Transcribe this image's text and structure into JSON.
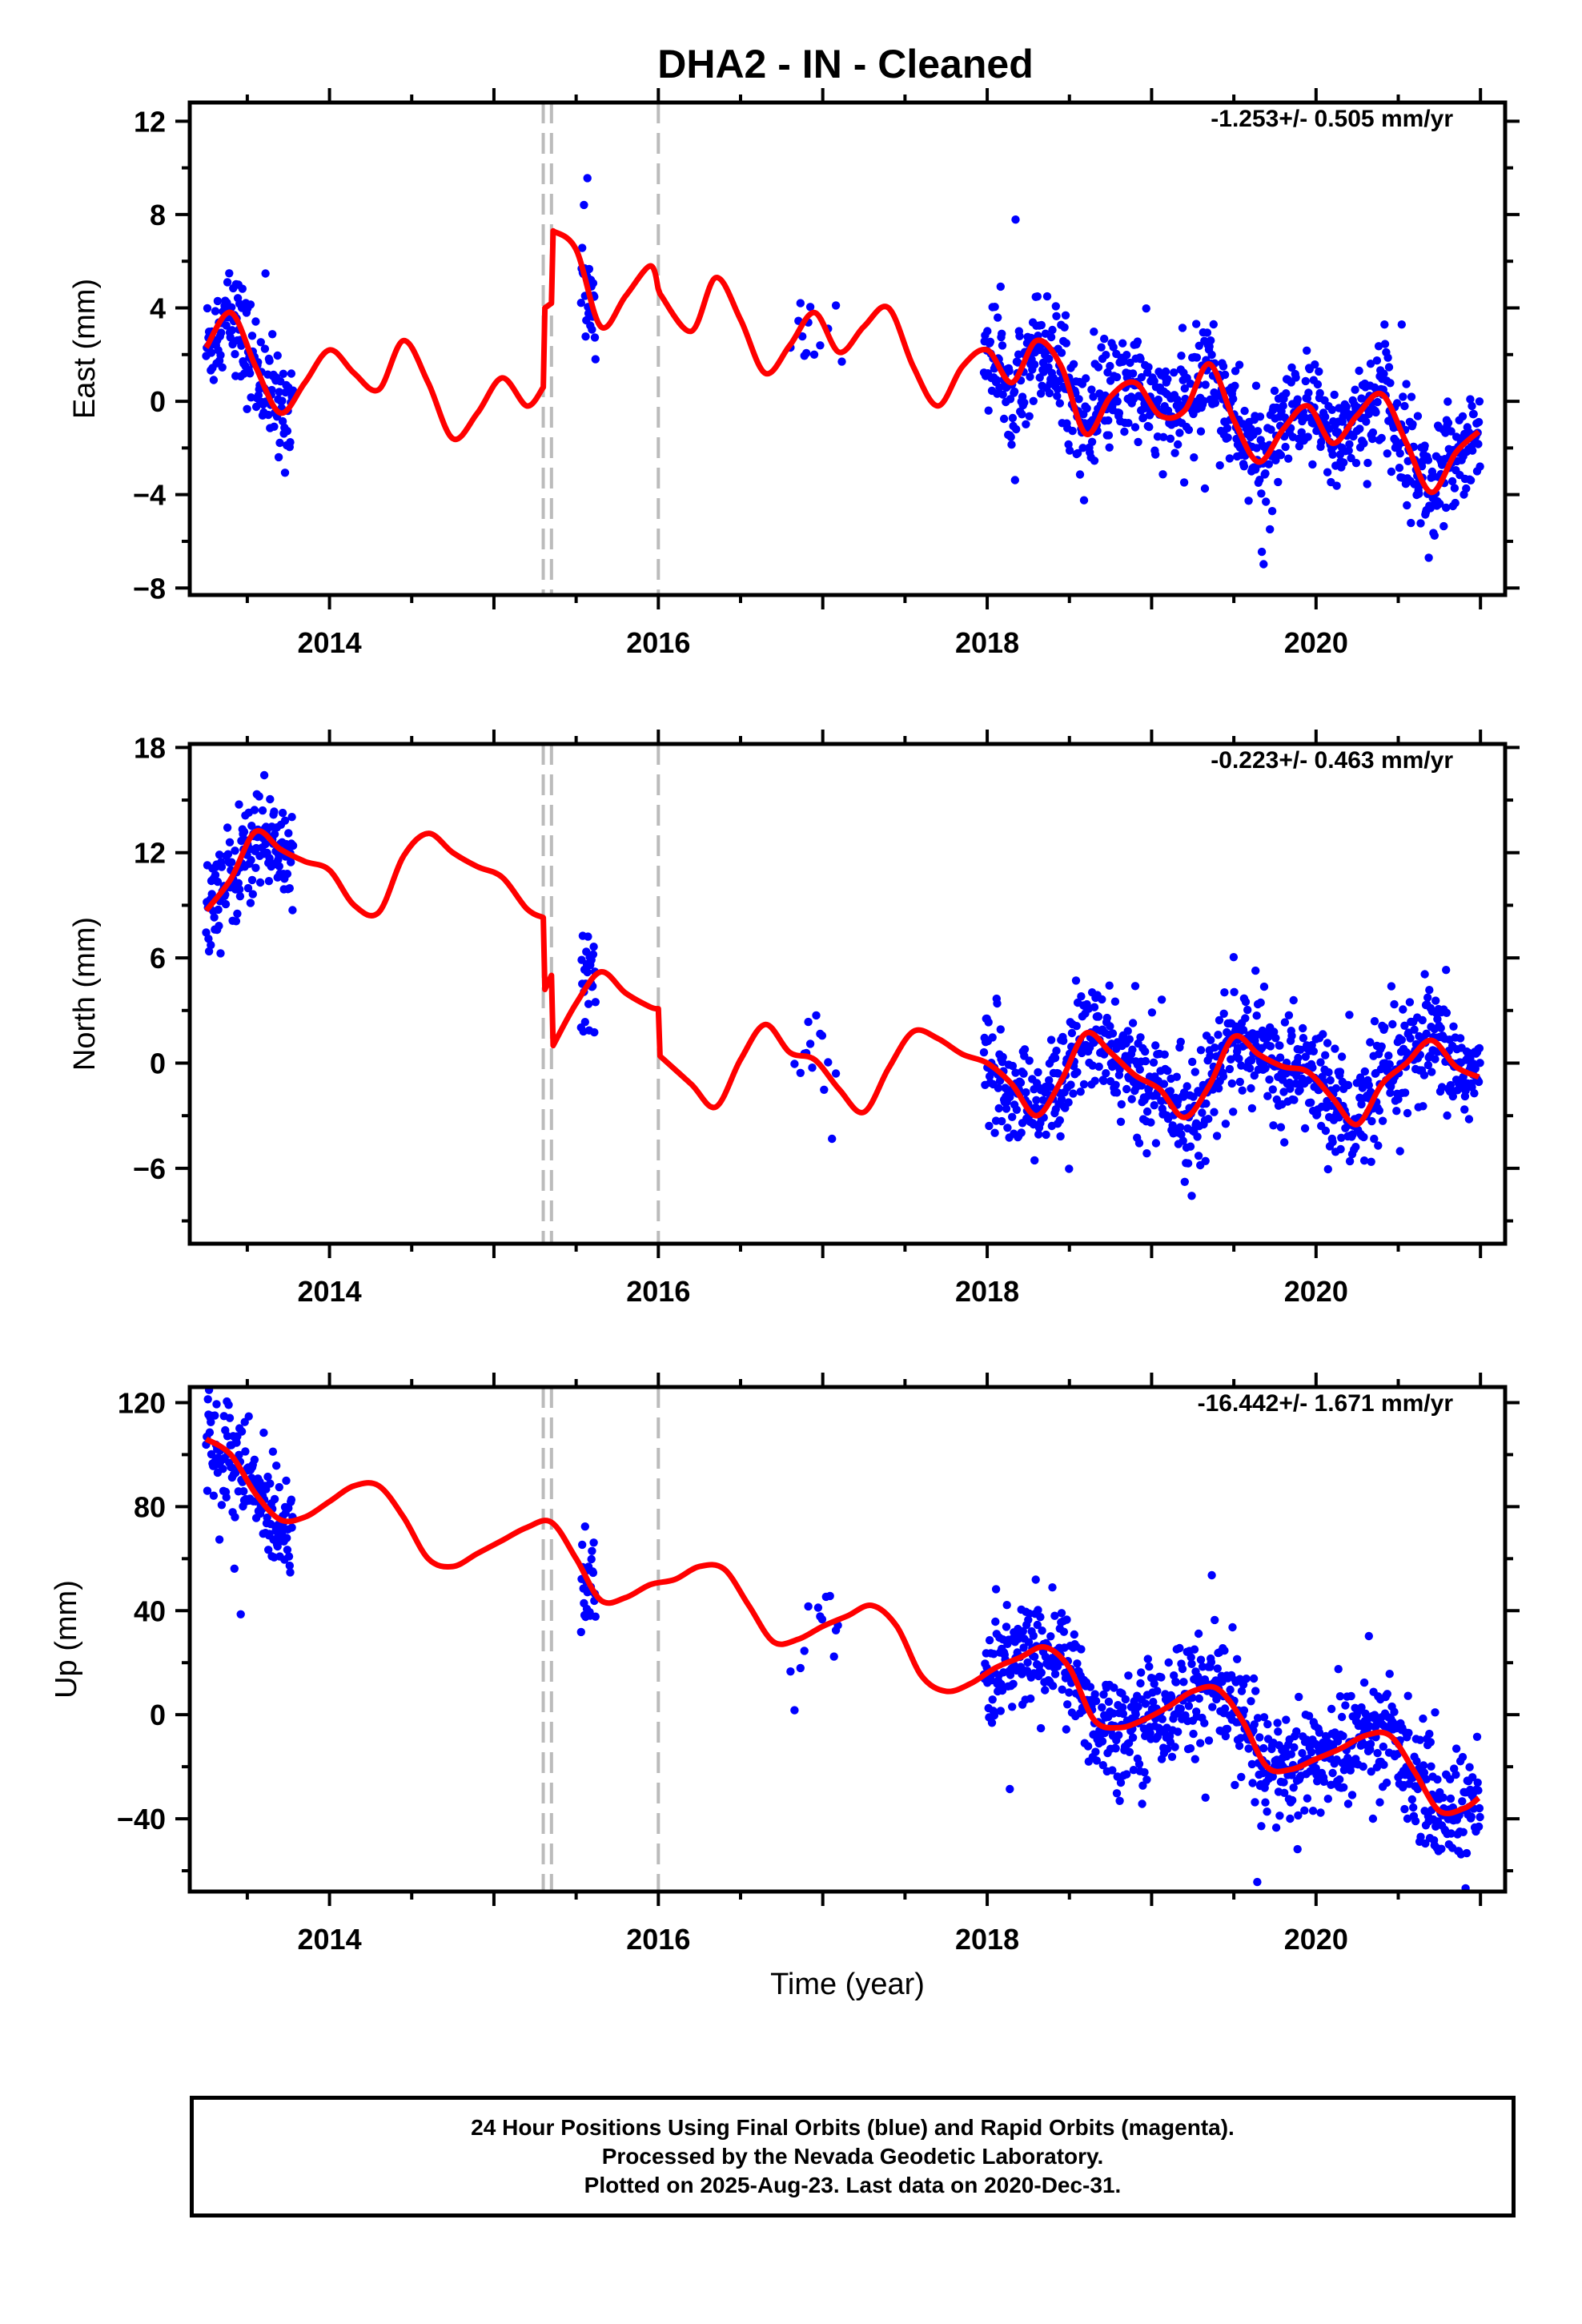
{
  "title": "DHA2  - IN - Cleaned",
  "footer": {
    "lines": [
      "24 Hour Positions Using Final Orbits (blue) and Rapid Orbits (magenta).",
      "Processed by the Nevada Geodetic Laboratory.",
      "Plotted on 2025-Aug-23. Last data on 2020-Dec-31."
    ]
  },
  "colors": {
    "points": "#0000ff",
    "model": "#ff0000",
    "steps": "#bbbbbb"
  },
  "chart_data": [
    {
      "type": "scatter",
      "ylabel": "East (mm)",
      "rate_text": "-1.253+/- 0.505 mm/yr",
      "xlim": [
        2013.15,
        2021.15
      ],
      "ylim": [
        -8.3,
        12.8
      ],
      "xticks": [
        2014,
        2016,
        2018,
        2020
      ],
      "yticks": [
        12,
        8,
        4,
        0,
        -4,
        -8
      ],
      "step_lines": [
        2015.3,
        2015.35,
        2016.0
      ],
      "model": {
        "x": [
          2013.25,
          2013.4,
          2013.55,
          2013.7,
          2013.85,
          2014.0,
          2014.15,
          2014.3,
          2014.45,
          2014.6,
          2014.75,
          2014.9,
          2015.05,
          2015.2,
          2015.3,
          2015.31,
          2015.35,
          2015.36,
          2015.5,
          2015.65,
          2015.8,
          2015.95,
          2016.0,
          2016.01,
          2016.2,
          2016.35,
          2016.5,
          2016.65,
          2016.8,
          2016.95,
          2017.1,
          2017.25,
          2017.4,
          2017.55,
          2017.7,
          2017.85,
          2018.0,
          2018.15,
          2018.3,
          2018.45,
          2018.6,
          2018.75,
          2018.9,
          2019.05,
          2019.2,
          2019.35,
          2019.5,
          2019.65,
          2019.8,
          2019.95,
          2020.1,
          2020.25,
          2020.4,
          2020.55,
          2020.7,
          2020.85,
          2020.99
        ],
        "y": [
          2.3,
          3.8,
          1.5,
          -0.5,
          0.8,
          2.2,
          1.2,
          0.5,
          2.6,
          0.8,
          -1.6,
          -0.5,
          1.0,
          -0.2,
          0.6,
          4.0,
          4.2,
          7.3,
          6.5,
          3.2,
          4.5,
          5.8,
          4.8,
          4.6,
          3.0,
          5.3,
          3.5,
          1.2,
          2.4,
          3.8,
          2.1,
          3.2,
          4.0,
          1.5,
          -0.2,
          1.5,
          2.2,
          0.8,
          2.6,
          1.5,
          -1.4,
          0.2,
          0.8,
          -0.6,
          -0.4,
          1.6,
          -0.8,
          -2.6,
          -1.2,
          -0.2,
          -1.8,
          -0.6,
          0.3,
          -1.8,
          -3.9,
          -2.2,
          -1.3
        ]
      }
    },
    {
      "type": "scatter",
      "ylabel": "North (mm)",
      "rate_text": "-0.223+/- 0.463 mm/yr",
      "xlim": [
        2013.15,
        2021.15
      ],
      "ylim": [
        -10.3,
        18.2
      ],
      "xticks": [
        2014,
        2016,
        2018,
        2020
      ],
      "yticks": [
        18,
        12,
        6,
        0,
        -6
      ],
      "step_lines": [
        2015.3,
        2015.35,
        2016.0
      ],
      "model": {
        "x": [
          2013.25,
          2013.4,
          2013.55,
          2013.7,
          2013.85,
          2014.0,
          2014.15,
          2014.3,
          2014.45,
          2014.6,
          2014.75,
          2014.9,
          2015.05,
          2015.2,
          2015.3,
          2015.31,
          2015.35,
          2015.36,
          2015.5,
          2015.65,
          2015.8,
          2015.95,
          2016.0,
          2016.01,
          2016.2,
          2016.35,
          2016.5,
          2016.65,
          2016.8,
          2016.95,
          2017.1,
          2017.25,
          2017.4,
          2017.55,
          2017.7,
          2017.85,
          2018.0,
          2018.15,
          2018.3,
          2018.45,
          2018.6,
          2018.75,
          2018.9,
          2019.05,
          2019.2,
          2019.35,
          2019.5,
          2019.65,
          2019.8,
          2019.95,
          2020.1,
          2020.25,
          2020.4,
          2020.55,
          2020.7,
          2020.85,
          2020.99
        ],
        "y": [
          8.7,
          10.5,
          13.2,
          12.2,
          11.5,
          11.0,
          9.0,
          8.6,
          11.8,
          13.1,
          12.0,
          11.2,
          10.6,
          8.8,
          8.3,
          4.2,
          5.0,
          1.0,
          3.4,
          5.2,
          4.0,
          3.2,
          3.1,
          0.4,
          -1.2,
          -2.5,
          0.2,
          2.2,
          0.6,
          0.2,
          -1.5,
          -2.8,
          -0.3,
          1.8,
          1.4,
          0.5,
          0.0,
          -1.2,
          -3.0,
          -1.0,
          1.7,
          0.6,
          -0.7,
          -1.5,
          -3.1,
          -1.3,
          1.5,
          0.5,
          -0.2,
          -0.5,
          -2.0,
          -3.5,
          -1.2,
          0.0,
          1.3,
          -0.2,
          -0.8
        ]
      }
    },
    {
      "type": "scatter",
      "ylabel": "Up (mm)",
      "xlabel": "Time (year)",
      "rate_text": "-16.442+/- 1.671 mm/yr",
      "xlim": [
        2013.15,
        2021.15
      ],
      "ylim": [
        -68,
        126
      ],
      "xticks": [
        2014,
        2016,
        2018,
        2020
      ],
      "yticks": [
        120,
        80,
        40,
        0,
        -40
      ],
      "step_lines": [
        2015.3,
        2015.35,
        2016.0
      ],
      "model": {
        "x": [
          2013.25,
          2013.4,
          2013.55,
          2013.7,
          2013.85,
          2014.0,
          2014.15,
          2014.3,
          2014.45,
          2014.6,
          2014.75,
          2014.9,
          2015.05,
          2015.2,
          2015.35,
          2015.5,
          2015.65,
          2015.8,
          2015.95,
          2016.1,
          2016.25,
          2016.4,
          2016.55,
          2016.7,
          2016.85,
          2017.0,
          2017.15,
          2017.3,
          2017.45,
          2017.6,
          2017.75,
          2017.9,
          2018.05,
          2018.2,
          2018.35,
          2018.5,
          2018.65,
          2018.8,
          2018.95,
          2019.1,
          2019.25,
          2019.4,
          2019.55,
          2019.7,
          2019.85,
          2020.0,
          2020.15,
          2020.3,
          2020.45,
          2020.6,
          2020.75,
          2020.9,
          2020.99
        ],
        "y": [
          106,
          100,
          85,
          75,
          76,
          82,
          88,
          88,
          76,
          60,
          57,
          62,
          67,
          72,
          74,
          60,
          44,
          45,
          50,
          52,
          57,
          56,
          42,
          28,
          29,
          34,
          38,
          42,
          34,
          15,
          9,
          12,
          18,
          22,
          26,
          18,
          -2,
          -5,
          -2,
          3,
          9,
          10,
          -2,
          -20,
          -21,
          -17,
          -13,
          -8,
          -8,
          -22,
          -37,
          -36,
          -32
        ]
      }
    }
  ]
}
